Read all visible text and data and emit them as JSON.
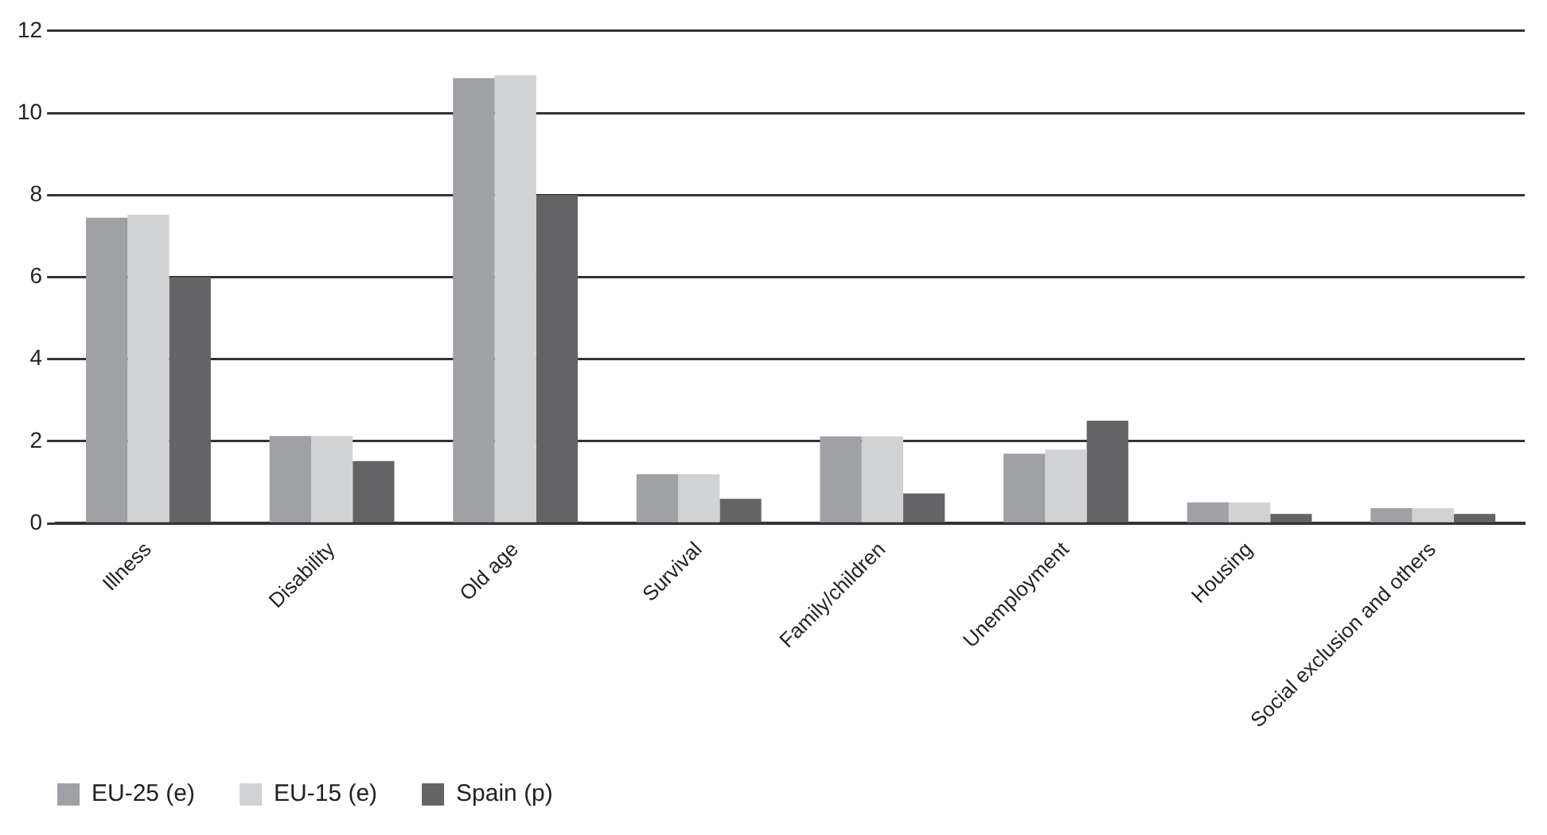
{
  "chart_data": {
    "type": "bar",
    "categories": [
      "Illness",
      "Disability",
      "Old age",
      "Survival",
      "Family/children",
      "Unemployment",
      "Housing",
      "Social exclusion and others"
    ],
    "series": [
      {
        "name": "EU-25 (e)",
        "color": "#a0a1a5",
        "values": [
          7.45,
          2.13,
          10.85,
          1.2,
          2.12,
          1.7,
          0.51,
          0.37
        ]
      },
      {
        "name": "EU-15 (e)",
        "color": "#d1d2d4",
        "values": [
          7.52,
          2.13,
          10.92,
          1.2,
          2.12,
          1.8,
          0.51,
          0.37
        ]
      },
      {
        "name": "Spain (p)",
        "color": "#646466",
        "values": [
          6.0,
          1.52,
          8.0,
          0.6,
          0.73,
          2.5,
          0.23,
          0.23
        ]
      }
    ],
    "ylim": [
      0,
      12
    ],
    "yticks": [
      0,
      2,
      4,
      6,
      8,
      10,
      12
    ],
    "grid": "y",
    "legend": "bottom left"
  }
}
